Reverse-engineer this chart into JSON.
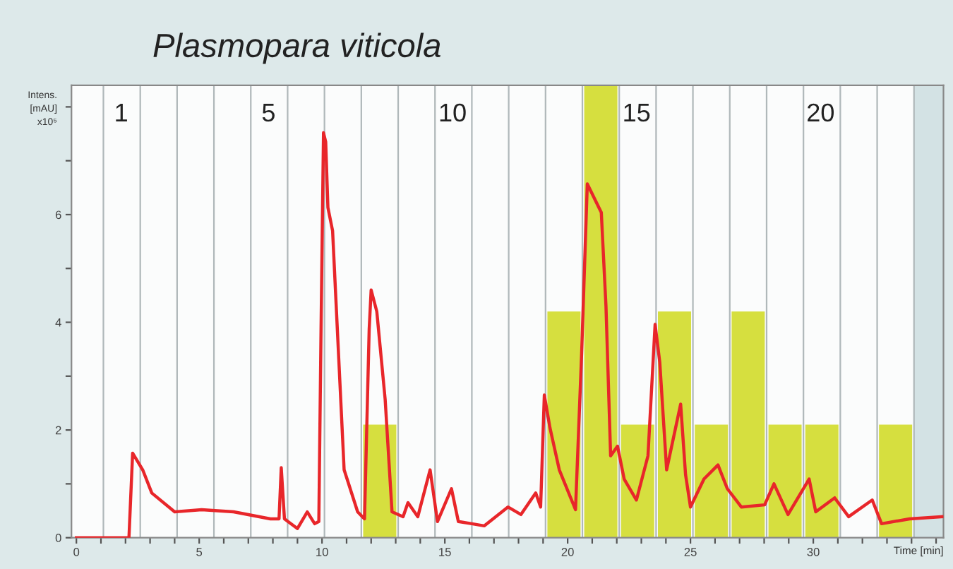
{
  "chart_data": {
    "type": "line",
    "title": "Plasmopara viticola",
    "xlabel": "Time [min]",
    "ylabel": "Intens.\n[mAU]\nx10⁵",
    "xlim": [
      -0.2,
      35.3
    ],
    "ylim": [
      0,
      8.4
    ],
    "annotations": [
      "1",
      "5",
      "10",
      "15",
      "20"
    ],
    "xticks": [
      0,
      {
        "value": 1,
        "label": null
      },
      {
        "value": 2,
        "label": null
      },
      {
        "value": 3,
        "label": null
      },
      {
        "value": 4,
        "label": null
      },
      5,
      {
        "value": 6,
        "label": null
      },
      {
        "value": 7,
        "label": null
      },
      {
        "value": 8,
        "label": null
      },
      {
        "value": 9,
        "label": null
      },
      10,
      {
        "value": 11,
        "label": null
      },
      {
        "value": 12,
        "label": null
      },
      {
        "value": 13,
        "label": null
      },
      {
        "value": 14,
        "label": null
      },
      15,
      {
        "value": 16,
        "label": null
      },
      {
        "value": 17,
        "label": null
      },
      {
        "value": 18,
        "label": null
      },
      {
        "value": 19,
        "label": null
      },
      20,
      {
        "value": 21,
        "label": null
      },
      {
        "value": 22,
        "label": null
      },
      {
        "value": 23,
        "label": null
      },
      {
        "value": 24,
        "label": null
      },
      25,
      {
        "value": 26,
        "label": null
      },
      {
        "value": 27,
        "label": null
      },
      {
        "value": 28,
        "label": null
      },
      {
        "value": 29,
        "label": null
      },
      30,
      {
        "value": 31,
        "label": null
      },
      {
        "value": 32,
        "label": null
      },
      {
        "value": 33,
        "label": null
      },
      {
        "value": 34,
        "label": null
      },
      {
        "value": 35,
        "label": null
      }
    ],
    "yticks": [
      0,
      {
        "value": 1,
        "label": null
      },
      2,
      {
        "value": 3,
        "label": null
      },
      4,
      {
        "value": 5,
        "label": null
      },
      6,
      {
        "value": 7,
        "label": null
      },
      {
        "value": 8,
        "label": null
      }
    ],
    "grid": false,
    "legend": false,
    "series": [
      {
        "type": "bar",
        "color": "#d6df3f",
        "x": [
          12.35,
          19.85,
          21.35,
          22.85,
          24.35,
          25.85,
          27.35,
          28.85,
          30.35,
          33.35
        ],
        "values": [
          2.1,
          4.2,
          8.4,
          2.1,
          4.2,
          2.1,
          4.2,
          2.1,
          2.1,
          2.1
        ]
      },
      {
        "color": "#e8262a",
        "x": [
          0,
          2.14,
          2.29,
          2.7,
          3.07,
          4.0,
          5.1,
          6.4,
          7.9,
          8.25,
          8.34,
          8.47,
          9.0,
          9.4,
          9.7,
          9.87,
          9.96,
          10.06,
          10.15,
          10.24,
          10.43,
          10.9,
          11.45,
          11.73,
          11.92,
          12.0,
          12.23,
          12.57,
          12.85,
          13.3,
          13.5,
          13.9,
          14.4,
          14.7,
          15.27,
          15.55,
          16.1,
          16.6,
          17.57,
          18.1,
          18.7,
          18.9,
          19.05,
          19.28,
          19.66,
          20.32,
          20.57,
          20.8,
          21.37,
          21.56,
          21.75,
          22.03,
          22.3,
          22.8,
          23.27,
          23.56,
          23.75,
          24.03,
          24.6,
          24.8,
          25.0,
          25.55,
          26.12,
          26.5,
          27.07,
          28.02,
          28.4,
          28.97,
          29.83,
          30.1,
          30.87,
          31.44,
          32.4,
          32.78,
          33.92,
          35.25
        ],
        "values": [
          0,
          0,
          1.57,
          1.26,
          0.83,
          0.48,
          0.52,
          0.48,
          0.35,
          0.35,
          1.3,
          0.35,
          0.17,
          0.48,
          0.26,
          0.3,
          3.87,
          7.52,
          7.35,
          6.13,
          5.7,
          1.26,
          0.48,
          0.35,
          3.87,
          4.6,
          4.2,
          2.57,
          0.48,
          0.39,
          0.65,
          0.39,
          1.26,
          0.3,
          0.91,
          0.3,
          0.26,
          0.22,
          0.57,
          0.43,
          0.83,
          0.57,
          2.65,
          2.04,
          1.26,
          0.52,
          3.43,
          6.57,
          6.04,
          4.3,
          1.52,
          1.7,
          1.09,
          0.7,
          1.52,
          3.96,
          3.26,
          1.26,
          2.48,
          1.17,
          0.57,
          1.09,
          1.35,
          0.91,
          0.57,
          0.61,
          1.0,
          0.43,
          1.09,
          0.48,
          0.74,
          0.39,
          0.7,
          0.26,
          0.35,
          0.39
        ]
      }
    ],
    "ref_lines": [
      {
        "axis": "x",
        "value": 1.1,
        "color": "#b0b8ba"
      },
      {
        "axis": "x",
        "value": 2.6,
        "color": "#b0b8ba"
      },
      {
        "axis": "x",
        "value": 4.1,
        "color": "#b0b8ba"
      },
      {
        "axis": "x",
        "value": 5.6,
        "color": "#b0b8ba"
      },
      {
        "axis": "x",
        "value": 7.1,
        "color": "#b0b8ba"
      },
      {
        "axis": "x",
        "value": 8.6,
        "color": "#b0b8ba"
      },
      {
        "axis": "x",
        "value": 10.1,
        "color": "#b0b8ba"
      },
      {
        "axis": "x",
        "value": 11.6,
        "color": "#b0b8ba"
      },
      {
        "axis": "x",
        "value": 13.1,
        "color": "#b0b8ba"
      },
      {
        "axis": "x",
        "value": 14.6,
        "color": "#b0b8ba"
      },
      {
        "axis": "x",
        "value": 16.1,
        "color": "#b0b8ba"
      },
      {
        "axis": "x",
        "value": 17.6,
        "color": "#b0b8ba"
      },
      {
        "axis": "x",
        "value": 19.1,
        "color": "#b0b8ba"
      },
      {
        "axis": "x",
        "value": 20.6,
        "color": "#b0b8ba"
      },
      {
        "axis": "x",
        "value": 22.1,
        "color": "#b0b8ba"
      },
      {
        "axis": "x",
        "value": 23.6,
        "color": "#b0b8ba"
      },
      {
        "axis": "x",
        "value": 25.1,
        "color": "#b0b8ba"
      },
      {
        "axis": "x",
        "value": 26.6,
        "color": "#b0b8ba"
      },
      {
        "axis": "x",
        "value": 28.1,
        "color": "#b0b8ba"
      },
      {
        "axis": "x",
        "value": 29.6,
        "color": "#b0b8ba"
      },
      {
        "axis": "x",
        "value": 31.1,
        "color": "#b0b8ba"
      },
      {
        "axis": "x",
        "value": 32.6,
        "color": "#b0b8ba"
      },
      {
        "axis": "x",
        "value": 34.1,
        "color": "#b0b8ba"
      }
    ],
    "bands": [
      {
        "axis": "x",
        "from": 34.1,
        "to": 35.3,
        "color": "#d3e2e4"
      }
    ]
  }
}
